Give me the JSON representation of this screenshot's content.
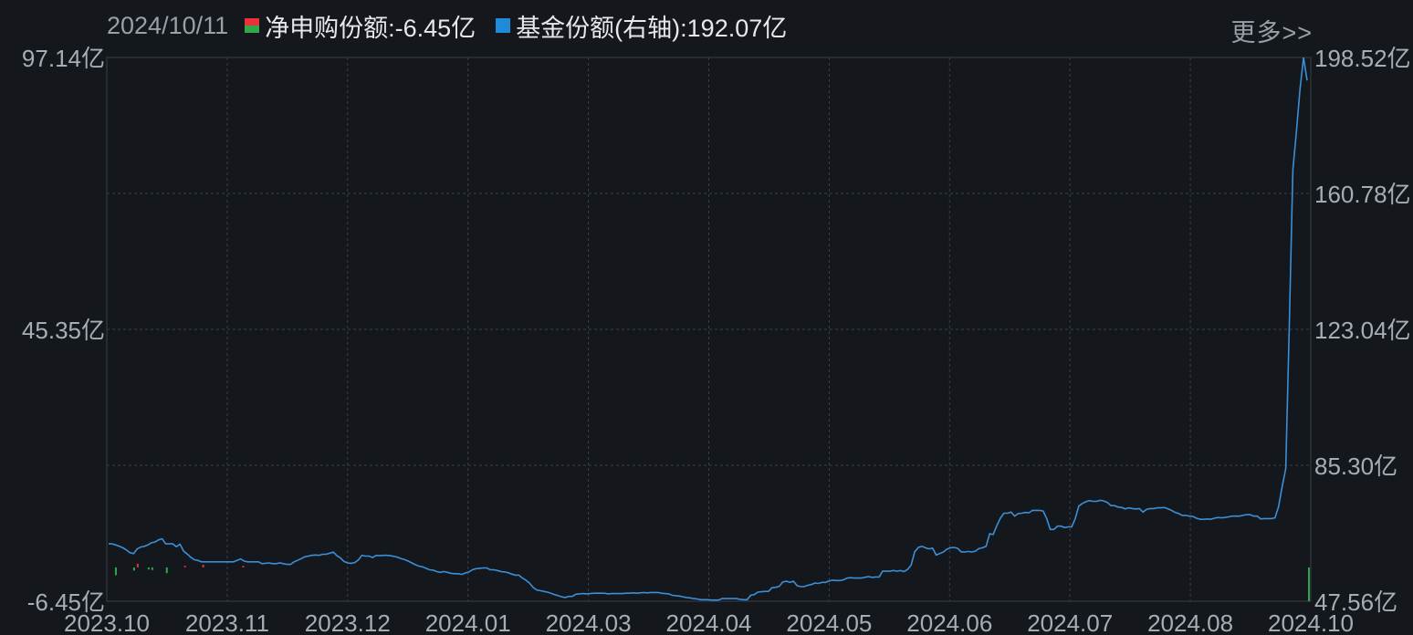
{
  "header": {
    "date": "2024/10/11",
    "legend": [
      {
        "label": "净申购份额:-6.45亿",
        "color": "#e8323c",
        "accent2": "#2ea84a"
      },
      {
        "label": "基金份额(右轴):192.07亿",
        "color": "#1f8ad8"
      }
    ],
    "more_label": "更多>>"
  },
  "chart_data": {
    "type": "bar+line",
    "left_axis": {
      "ticks": [
        "97.14亿",
        "45.35亿",
        "-6.45亿"
      ],
      "range": [
        -6.45,
        97.14
      ],
      "unit": "亿"
    },
    "right_axis": {
      "ticks": [
        "198.52亿",
        "160.78亿",
        "123.04亿",
        "85.30亿",
        "47.56亿"
      ],
      "range": [
        47.56,
        198.52
      ],
      "unit": "亿"
    },
    "x_ticks": [
      "2023.10",
      "2023.11",
      "2023.12",
      "2024.01",
      "2024.03",
      "2024.04",
      "2024.05",
      "2024.06",
      "2024.07",
      "2024.08",
      "2024.10"
    ],
    "bar_series_name": "净申购份额",
    "line_series_name": "基金份额(右轴)",
    "colors": {
      "up": "#e8323c",
      "down": "#2ea84a",
      "line": "#3b8fd6",
      "grid": "#3a3f47"
    },
    "grid": true,
    "line_values": [
      63.5,
      63.5,
      63.2,
      62.8,
      62.4,
      61.8,
      61.0,
      60.8,
      62.1,
      62.6,
      62.8,
      63.2,
      63.8,
      64.0,
      64.6,
      64.9,
      63.5,
      63.5,
      63.5,
      62.7,
      63.4,
      61.5,
      60.7,
      59.8,
      59.1,
      58.9,
      58.5,
      58.5,
      58.5,
      58.5,
      58.5,
      58.5,
      58.5,
      58.5,
      58.5,
      58.5,
      58.9,
      59.3,
      58.7,
      58.5,
      58.5,
      58.5,
      58.5,
      58.0,
      58.1,
      58.2,
      58.0,
      58.0,
      58.2,
      58.0,
      57.8,
      57.8,
      58.5,
      58.9,
      59.4,
      59.9,
      60.1,
      60.3,
      60.4,
      60.3,
      60.6,
      60.6,
      60.9,
      61.2,
      60.2,
      59.6,
      58.6,
      58.2,
      58.1,
      58.3,
      59.0,
      60.3,
      60.1,
      60.1,
      59.7,
      60.3,
      60.2,
      60.3,
      60.3,
      60.2,
      60.0,
      59.8,
      59.4,
      59.1,
      58.7,
      58.2,
      57.7,
      57.3,
      57.1,
      56.7,
      56.3,
      56.2,
      55.8,
      55.6,
      55.8,
      55.6,
      55.3,
      55.2,
      55.2,
      55.0,
      55.4,
      55.7,
      56.3,
      56.6,
      56.7,
      56.8,
      56.8,
      56.3,
      56.3,
      56.1,
      55.8,
      55.7,
      55.5,
      55.1,
      54.8,
      54.8,
      54.0,
      53.4,
      52.6,
      51.4,
      50.7,
      50.5,
      50.3,
      50.1,
      49.8,
      49.4,
      49.1,
      48.8,
      48.6,
      48.9,
      48.9,
      49.5,
      49.6,
      49.7,
      49.6,
      49.7,
      49.8,
      49.8,
      49.8,
      49.8,
      49.6,
      49.7,
      49.7,
      49.7,
      49.7,
      49.8,
      49.8,
      49.9,
      49.8,
      49.9,
      50.0,
      49.9,
      50.0,
      50.0,
      50.0,
      49.8,
      49.7,
      49.6,
      49.2,
      49.1,
      49.0,
      48.8,
      48.6,
      48.5,
      48.3,
      48.2,
      48.0,
      48.0,
      48.0,
      47.9,
      47.9,
      47.9,
      48.3,
      48.3,
      48.3,
      48.3,
      48.3,
      48.1,
      48.0,
      48.0,
      49.2,
      49.4,
      50.1,
      50.2,
      50.3,
      50.3,
      51.3,
      51.4,
      51.7,
      52.9,
      53.1,
      52.8,
      53.1,
      51.9,
      51.6,
      51.6,
      52.0,
      52.2,
      52.6,
      52.5,
      52.8,
      52.8,
      53.2,
      53.4,
      53.3,
      53.3,
      53.5,
      54.0,
      54.1,
      54.0,
      54.0,
      54.0,
      54.2,
      54.4,
      54.2,
      54.3,
      54.3,
      55.9,
      55.9,
      55.9,
      56.1,
      55.9,
      56.1,
      55.8,
      56.4,
      57.6,
      61.3,
      62.5,
      62.8,
      62.4,
      62.1,
      62.3,
      60.4,
      60.8,
      61.2,
      62.0,
      62.4,
      62.5,
      62.3,
      61.3,
      61.2,
      61.4,
      61.2,
      61.5,
      62.2,
      62.4,
      62.8,
      66.3,
      66.1,
      68.5,
      70.6,
      72.0,
      72.0,
      72.3,
      71.2,
      71.9,
      72.0,
      72.2,
      72.1,
      72.8,
      72.8,
      72.8,
      72.6,
      70.5,
      67.5,
      67.5,
      68.4,
      68.4,
      68.0,
      68.2,
      68.2,
      70.5,
      74.0,
      74.7,
      75.2,
      75.5,
      75.3,
      75.3,
      75.6,
      75.4,
      75.0,
      74.1,
      74.1,
      73.7,
      73.6,
      73.2,
      73.5,
      73.3,
      73.2,
      73.3,
      72.3,
      73.1,
      73.3,
      73.3,
      73.5,
      73.5,
      73.6,
      73.2,
      72.8,
      72.2,
      71.9,
      71.4,
      71.4,
      71.2,
      71.1,
      70.6,
      70.3,
      70.3,
      70.4,
      70.3,
      70.6,
      70.8,
      70.7,
      70.8,
      71.0,
      71.2,
      71.2,
      71.2,
      71.4,
      71.6,
      71.6,
      71.2,
      71.2,
      70.4,
      70.5,
      70.5,
      70.5,
      70.7,
      73.8,
      79.3,
      84.4,
      124.4,
      167.3,
      178.0,
      189.7,
      198.5,
      192.1
    ],
    "bar_values": [
      0.0,
      0.0,
      -1.5,
      0.0,
      0.0,
      0.0,
      0.0,
      -0.6,
      0.7,
      0.0,
      0.0,
      -0.4,
      -0.5,
      0.0,
      0.0,
      0.0,
      -1.1,
      0.0,
      0.0,
      0.0,
      0.0,
      0.3,
      0.0,
      0.0,
      0.0,
      0.0,
      0.5,
      0.0,
      0.0,
      0.0,
      0.0,
      0.0,
      0.0,
      0.0,
      0.0,
      0.0,
      0.0,
      0.3,
      0.0,
      0.0,
      0.0,
      0.0,
      0.0,
      0.0,
      0.0,
      0.0,
      0.0,
      0.0,
      0.0,
      0.0,
      0.0,
      0.0,
      0.0,
      0.0,
      0.0,
      0.0,
      0.0,
      0.0,
      0.0,
      0.0,
      0.0,
      0.0,
      0.0,
      0.0,
      0.0,
      0.0,
      0.0,
      0.0,
      0.0,
      0.0,
      0.0,
      0.0,
      0.0,
      0.0,
      0.0,
      0.0,
      0.0,
      0.0,
      0.0,
      0.0,
      0.0,
      0.0,
      0.0,
      0.0,
      0.0,
      0.0,
      0.0,
      0.0,
      0.0,
      0.0,
      0.0,
      0.0,
      0.0,
      0.0,
      0.0,
      0.0,
      0.0,
      0.0,
      0.0,
      0.0,
      0.0,
      0.0,
      0.0,
      0.0,
      0.0,
      0.0,
      0.0,
      0.0,
      0.0,
      0.0,
      0.0,
      0.0,
      0.0,
      0.0,
      0.0,
      0.0,
      0.0,
      0.0,
      0.0,
      0.0,
      0.0,
      0.0,
      0.0,
      0.0,
      0.0,
      0.0,
      0.0,
      0.0,
      0.0,
      0.0,
      0.0,
      0.0,
      0.0,
      0.0,
      0.0,
      0.0,
      0.0,
      0.0,
      0.0,
      0.0,
      0.0,
      0.0,
      0.0,
      0.0,
      0.0,
      0.0,
      0.0,
      0.0,
      0.0,
      0.0,
      0.0,
      0.0,
      0.0,
      0.0,
      0.0,
      0.0,
      0.0,
      0.0,
      0.0,
      0.0,
      0.0,
      0.0,
      0.0,
      0.0,
      0.0,
      0.0,
      0.0,
      0.0,
      0.0,
      0.0,
      0.0,
      0.0,
      0.0,
      0.0,
      0.0,
      0.0,
      0.0,
      0.0,
      0.0,
      0.0,
      0.0,
      0.0,
      0.0,
      0.0,
      0.0,
      0.0,
      0.0,
      0.0,
      0.0,
      0.0,
      0.0,
      0.0,
      0.0,
      0.0,
      0.0,
      0.0,
      0.0,
      0.0,
      0.0,
      0.0,
      0.0,
      0.0,
      0.0,
      0.0,
      0.0,
      0.0,
      0.0,
      0.0,
      0.0,
      0.0,
      0.0,
      0.0,
      0.0,
      0.0,
      0.0,
      0.0,
      0.0,
      0.0,
      0.0,
      0.0,
      0.0,
      0.0,
      0.0,
      0.0,
      0.0,
      0.0,
      0.0,
      0.0,
      0.0,
      0.0,
      0.0,
      0.0,
      0.0,
      0.0,
      0.0,
      0.0,
      0.0,
      0.0,
      0.0,
      0.0,
      0.0,
      0.0,
      0.0,
      0.0,
      0.0,
      0.0,
      0.0,
      0.0,
      0.0,
      0.0,
      0.0,
      0.0,
      0.0,
      0.0,
      0.0,
      0.0,
      0.0,
      0.0,
      0.0,
      0.0,
      0.0,
      0.0,
      0.0,
      0.0,
      0.0,
      0.0,
      0.0,
      0.0,
      0.0,
      0.0,
      0.0,
      0.0,
      0.0,
      0.0,
      0.0,
      0.0,
      0.0,
      0.0,
      0.0,
      0.0,
      0.0,
      0.0,
      0.0,
      0.0,
      0.0,
      0.0,
      0.0,
      0.0,
      0.0,
      0.0,
      0.0,
      0.0,
      0.0,
      0.0,
      0.0,
      0.0,
      0.0,
      0.0,
      0.0,
      0.0,
      0.0,
      0.0,
      0.0,
      0.0,
      0.0,
      0.0,
      0.0,
      0.0,
      0.0,
      0.0,
      0.0,
      0.0,
      0.0,
      0.0,
      0.0,
      0.0,
      0.0,
      0.0,
      0.0,
      0.0,
      0.0,
      0.0,
      0.0,
      0.0,
      0.0,
      0.0,
      0.0,
      0.0,
      0.0,
      0.0,
      -6.45
    ]
  }
}
